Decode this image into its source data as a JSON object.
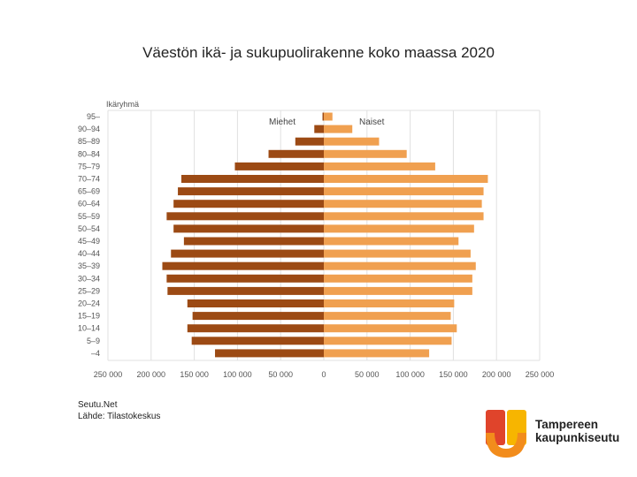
{
  "title": "Väestön ikä- ja sukupuolirakenne koko maassa 2020",
  "source": {
    "line1": "Seutu.Net",
    "line2": "Lähde: Tilastokeskus"
  },
  "logo": {
    "line1": "Tampereen",
    "line2": "kaupunkiseutu"
  },
  "colors": {
    "men": "#9c4a14",
    "women": "#f0a050",
    "grid": "#e0e0e0"
  },
  "chart_data": {
    "type": "bar",
    "orientation": "horizontal-population-pyramid",
    "ylabel": "Ikäryhmä",
    "categories": [
      "95–",
      "90–94",
      "85–89",
      "80–84",
      "75–79",
      "70–74",
      "65–69",
      "60–64",
      "55–59",
      "50–54",
      "45–49",
      "40–44",
      "35–39",
      "30–34",
      "25–29",
      "20–24",
      "15–19",
      "10–14",
      "5–9",
      "–4"
    ],
    "series": [
      {
        "name": "Miehet",
        "side": "left",
        "values": [
          1500,
          11000,
          33000,
          64000,
          103000,
          165000,
          169000,
          174000,
          182000,
          174000,
          162000,
          177000,
          187000,
          182000,
          181000,
          158000,
          152000,
          158000,
          153000,
          126000
        ]
      },
      {
        "name": "Naiset",
        "side": "right",
        "values": [
          10000,
          33000,
          64000,
          96000,
          129000,
          190000,
          185000,
          183000,
          185000,
          174000,
          156000,
          170000,
          176000,
          172000,
          172000,
          151000,
          147000,
          154000,
          148000,
          122000
        ]
      }
    ],
    "xticks": [
      "250 000",
      "200 000",
      "150 000",
      "100 000",
      "50 000",
      "0",
      "50 000",
      "100 000",
      "150 000",
      "200 000",
      "250 000"
    ],
    "xlim": [
      -250000,
      250000
    ],
    "grid": true
  }
}
